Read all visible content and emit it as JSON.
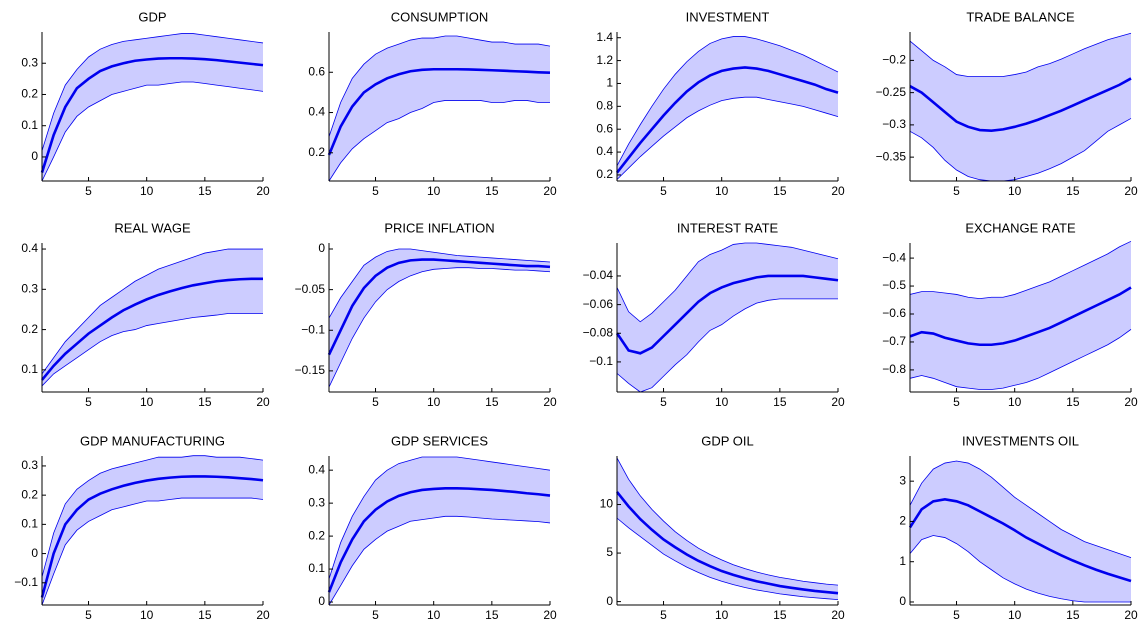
{
  "chart_data": [
    {
      "type": "line",
      "title": "GDP",
      "x": [
        1,
        2,
        3,
        4,
        5,
        6,
        7,
        8,
        9,
        10,
        11,
        12,
        13,
        14,
        15,
        16,
        17,
        18,
        19,
        20
      ],
      "xlim": [
        1,
        20
      ],
      "xticks": [
        5,
        10,
        15,
        20
      ],
      "ylim": [
        -0.077,
        0.4
      ],
      "yticks": [
        0,
        0.1,
        0.2,
        0.3
      ],
      "color": "#0000ee",
      "band_color": "#ccccff",
      "values": [
        -0.05,
        0.07,
        0.16,
        0.22,
        0.25,
        0.275,
        0.29,
        0.3,
        0.308,
        0.312,
        0.315,
        0.316,
        0.316,
        0.315,
        0.313,
        0.31,
        0.306,
        0.302,
        0.298,
        0.294
      ],
      "upper": [
        0.02,
        0.14,
        0.23,
        0.28,
        0.32,
        0.345,
        0.36,
        0.37,
        0.375,
        0.38,
        0.385,
        0.39,
        0.395,
        0.395,
        0.39,
        0.385,
        0.38,
        0.375,
        0.37,
        0.365
      ],
      "lower": [
        -0.077,
        0,
        0.08,
        0.13,
        0.16,
        0.18,
        0.2,
        0.21,
        0.22,
        0.23,
        0.23,
        0.235,
        0.24,
        0.24,
        0.235,
        0.23,
        0.225,
        0.22,
        0.215,
        0.21
      ]
    },
    {
      "type": "line",
      "title": "CONSUMPTION",
      "x": [
        1,
        2,
        3,
        4,
        5,
        6,
        7,
        8,
        9,
        10,
        11,
        12,
        13,
        14,
        15,
        16,
        17,
        18,
        19,
        20
      ],
      "xlim": [
        1,
        20
      ],
      "xticks": [
        5,
        10,
        15,
        20
      ],
      "ylim": [
        0.06,
        0.8
      ],
      "yticks": [
        0.2,
        0.4,
        0.6
      ],
      "color": "#0000ee",
      "band_color": "#ccccff",
      "values": [
        0.19,
        0.33,
        0.43,
        0.5,
        0.54,
        0.57,
        0.59,
        0.605,
        0.612,
        0.615,
        0.615,
        0.615,
        0.614,
        0.612,
        0.61,
        0.608,
        0.605,
        0.603,
        0.6,
        0.598
      ],
      "upper": [
        0.28,
        0.45,
        0.57,
        0.64,
        0.69,
        0.72,
        0.74,
        0.76,
        0.77,
        0.77,
        0.78,
        0.78,
        0.77,
        0.76,
        0.75,
        0.75,
        0.74,
        0.74,
        0.74,
        0.73
      ],
      "lower": [
        0.06,
        0.15,
        0.22,
        0.27,
        0.31,
        0.35,
        0.37,
        0.4,
        0.42,
        0.45,
        0.46,
        0.46,
        0.46,
        0.46,
        0.45,
        0.45,
        0.46,
        0.46,
        0.45,
        0.45
      ]
    },
    {
      "type": "line",
      "title": "INVESTMENT",
      "x": [
        1,
        2,
        3,
        4,
        5,
        6,
        7,
        8,
        9,
        10,
        11,
        12,
        13,
        14,
        15,
        16,
        17,
        18,
        19,
        20
      ],
      "xlim": [
        1,
        20
      ],
      "xticks": [
        5,
        10,
        15,
        20
      ],
      "ylim": [
        0.147,
        1.45
      ],
      "yticks": [
        0.2,
        0.4,
        0.6,
        0.8,
        1,
        1.2,
        1.4
      ],
      "color": "#0000ee",
      "band_color": "#ccccff",
      "values": [
        0.22,
        0.35,
        0.48,
        0.6,
        0.72,
        0.83,
        0.93,
        1.01,
        1.07,
        1.11,
        1.13,
        1.14,
        1.13,
        1.11,
        1.08,
        1.05,
        1.02,
        0.99,
        0.95,
        0.92
      ],
      "upper": [
        0.28,
        0.47,
        0.64,
        0.8,
        0.95,
        1.08,
        1.19,
        1.28,
        1.35,
        1.39,
        1.41,
        1.41,
        1.39,
        1.36,
        1.33,
        1.29,
        1.25,
        1.2,
        1.15,
        1.1
      ],
      "lower": [
        0.16,
        0.26,
        0.36,
        0.45,
        0.54,
        0.62,
        0.7,
        0.76,
        0.81,
        0.85,
        0.87,
        0.88,
        0.88,
        0.86,
        0.84,
        0.82,
        0.8,
        0.77,
        0.74,
        0.71
      ]
    },
    {
      "type": "line",
      "title": "TRADE BALANCE",
      "x": [
        1,
        2,
        3,
        4,
        5,
        6,
        7,
        8,
        9,
        10,
        11,
        12,
        13,
        14,
        15,
        16,
        17,
        18,
        19,
        20
      ],
      "xlim": [
        1,
        20
      ],
      "xticks": [
        5,
        10,
        15,
        20
      ],
      "ylim": [
        -0.387,
        -0.156
      ],
      "yticks": [
        {
          "value": -0.2,
          "label": "−0.2"
        },
        {
          "value": -0.25,
          "label": "−0.25"
        },
        {
          "value": -0.3,
          "label": "−0.3"
        },
        {
          "value": -0.35,
          "label": "−0.35"
        }
      ],
      "color": "#0000ee",
      "band_color": "#ccccff",
      "values": [
        -0.24,
        -0.25,
        -0.265,
        -0.28,
        -0.295,
        -0.303,
        -0.308,
        -0.309,
        -0.307,
        -0.303,
        -0.298,
        -0.292,
        -0.285,
        -0.278,
        -0.27,
        -0.262,
        -0.254,
        -0.246,
        -0.238,
        -0.228
      ],
      "upper": [
        -0.17,
        -0.185,
        -0.2,
        -0.21,
        -0.222,
        -0.225,
        -0.225,
        -0.225,
        -0.225,
        -0.222,
        -0.218,
        -0.21,
        -0.205,
        -0.198,
        -0.19,
        -0.182,
        -0.175,
        -0.168,
        -0.163,
        -0.158
      ],
      "lower": [
        -0.31,
        -0.32,
        -0.335,
        -0.355,
        -0.37,
        -0.38,
        -0.385,
        -0.387,
        -0.387,
        -0.385,
        -0.38,
        -0.375,
        -0.368,
        -0.36,
        -0.35,
        -0.34,
        -0.325,
        -0.31,
        -0.3,
        -0.29
      ]
    },
    {
      "type": "line",
      "title": "REAL WAGE",
      "x": [
        1,
        2,
        3,
        4,
        5,
        6,
        7,
        8,
        9,
        10,
        11,
        12,
        13,
        14,
        15,
        16,
        17,
        18,
        19,
        20
      ],
      "xlim": [
        1,
        20
      ],
      "xticks": [
        5,
        10,
        15,
        20
      ],
      "ylim": [
        0.045,
        0.415
      ],
      "yticks": [
        0.1,
        0.2,
        0.3,
        0.4
      ],
      "color": "#0000ee",
      "band_color": "#ccccff",
      "values": [
        0.075,
        0.11,
        0.14,
        0.165,
        0.19,
        0.21,
        0.23,
        0.248,
        0.262,
        0.275,
        0.286,
        0.295,
        0.303,
        0.31,
        0.315,
        0.32,
        0.323,
        0.325,
        0.326,
        0.326
      ],
      "upper": [
        0.09,
        0.13,
        0.17,
        0.2,
        0.23,
        0.26,
        0.28,
        0.3,
        0.32,
        0.335,
        0.35,
        0.36,
        0.37,
        0.38,
        0.39,
        0.395,
        0.4,
        0.4,
        0.4,
        0.4
      ],
      "lower": [
        0.06,
        0.09,
        0.11,
        0.13,
        0.15,
        0.17,
        0.185,
        0.195,
        0.2,
        0.21,
        0.215,
        0.22,
        0.225,
        0.23,
        0.233,
        0.236,
        0.24,
        0.24,
        0.24,
        0.24
      ]
    },
    {
      "type": "line",
      "title": "PRICE INFLATION",
      "x": [
        1,
        2,
        3,
        4,
        5,
        6,
        7,
        8,
        9,
        10,
        11,
        12,
        13,
        14,
        15,
        16,
        17,
        18,
        19,
        20
      ],
      "xlim": [
        1,
        20
      ],
      "xticks": [
        5,
        10,
        15,
        20
      ],
      "ylim": [
        -0.176,
        0.0074
      ],
      "yticks": [
        0,
        {
          "value": -0.05,
          "label": "−0.05"
        },
        {
          "value": -0.1,
          "label": "−0.1"
        },
        {
          "value": -0.15,
          "label": "−0.15"
        }
      ],
      "color": "#0000ee",
      "band_color": "#ccccff",
      "values": [
        -0.13,
        -0.1,
        -0.07,
        -0.048,
        -0.033,
        -0.023,
        -0.017,
        -0.014,
        -0.013,
        -0.013,
        -0.014,
        -0.015,
        -0.016,
        -0.017,
        -0.018,
        -0.019,
        -0.02,
        -0.021,
        -0.021,
        -0.022
      ],
      "upper": [
        -0.085,
        -0.06,
        -0.04,
        -0.02,
        -0.01,
        -0.003,
        0,
        0,
        -0.002,
        -0.004,
        -0.006,
        -0.008,
        -0.009,
        -0.01,
        -0.011,
        -0.012,
        -0.013,
        -0.014,
        -0.015,
        -0.016
      ],
      "lower": [
        -0.17,
        -0.14,
        -0.11,
        -0.085,
        -0.065,
        -0.05,
        -0.04,
        -0.033,
        -0.028,
        -0.025,
        -0.024,
        -0.023,
        -0.023,
        -0.024,
        -0.024,
        -0.025,
        -0.026,
        -0.026,
        -0.027,
        -0.028
      ]
    },
    {
      "type": "line",
      "title": "INTEREST RATE",
      "x": [
        1,
        2,
        3,
        4,
        5,
        6,
        7,
        8,
        9,
        10,
        11,
        12,
        13,
        14,
        15,
        16,
        17,
        18,
        19,
        20
      ],
      "xlim": [
        1,
        20
      ],
      "xticks": [
        5,
        10,
        15,
        20
      ],
      "ylim": [
        -0.121,
        -0.017
      ],
      "yticks": [
        {
          "value": -0.04,
          "label": "−0.04"
        },
        {
          "value": -0.06,
          "label": "−0.06"
        },
        {
          "value": -0.08,
          "label": "−0.08"
        },
        {
          "value": -0.1,
          "label": "−0.1"
        }
      ],
      "color": "#0000ee",
      "band_color": "#ccccff",
      "values": [
        -0.08,
        -0.092,
        -0.094,
        -0.09,
        -0.082,
        -0.074,
        -0.066,
        -0.058,
        -0.052,
        -0.048,
        -0.045,
        -0.043,
        -0.041,
        -0.04,
        -0.04,
        -0.04,
        -0.04,
        -0.041,
        -0.042,
        -0.043
      ],
      "upper": [
        -0.048,
        -0.065,
        -0.072,
        -0.066,
        -0.058,
        -0.05,
        -0.04,
        -0.03,
        -0.025,
        -0.022,
        -0.018,
        -0.017,
        -0.017,
        -0.018,
        -0.019,
        -0.02,
        -0.022,
        -0.024,
        -0.026,
        -0.028
      ],
      "lower": [
        -0.108,
        -0.115,
        -0.121,
        -0.118,
        -0.11,
        -0.102,
        -0.095,
        -0.086,
        -0.078,
        -0.074,
        -0.068,
        -0.063,
        -0.059,
        -0.057,
        -0.056,
        -0.056,
        -0.056,
        -0.056,
        -0.056,
        -0.056
      ]
    },
    {
      "type": "line",
      "title": "EXCHANGE RATE",
      "x": [
        1,
        2,
        3,
        4,
        5,
        6,
        7,
        8,
        9,
        10,
        11,
        12,
        13,
        14,
        15,
        16,
        17,
        18,
        19,
        20
      ],
      "xlim": [
        1,
        20
      ],
      "xticks": [
        5,
        10,
        15,
        20
      ],
      "ylim": [
        -0.879,
        -0.346
      ],
      "yticks": [
        {
          "value": -0.4,
          "label": "−0.4"
        },
        {
          "value": -0.5,
          "label": "−0.5"
        },
        {
          "value": -0.6,
          "label": "−0.6"
        },
        {
          "value": -0.7,
          "label": "−0.7"
        },
        {
          "value": -0.8,
          "label": "−0.8"
        }
      ],
      "color": "#0000ee",
      "band_color": "#ccccff",
      "values": [
        -0.68,
        -0.665,
        -0.67,
        -0.685,
        -0.695,
        -0.705,
        -0.71,
        -0.71,
        -0.705,
        -0.695,
        -0.68,
        -0.665,
        -0.65,
        -0.63,
        -0.61,
        -0.59,
        -0.57,
        -0.55,
        -0.53,
        -0.505
      ],
      "upper": [
        -0.53,
        -0.52,
        -0.52,
        -0.525,
        -0.53,
        -0.54,
        -0.545,
        -0.54,
        -0.54,
        -0.53,
        -0.515,
        -0.5,
        -0.485,
        -0.465,
        -0.445,
        -0.425,
        -0.405,
        -0.385,
        -0.36,
        -0.34
      ],
      "lower": [
        -0.83,
        -0.82,
        -0.83,
        -0.845,
        -0.86,
        -0.865,
        -0.87,
        -0.87,
        -0.865,
        -0.855,
        -0.845,
        -0.83,
        -0.81,
        -0.79,
        -0.77,
        -0.75,
        -0.73,
        -0.71,
        -0.685,
        -0.655
      ]
    },
    {
      "type": "line",
      "title": "GDP MANUFACTURING",
      "x": [
        1,
        2,
        3,
        4,
        5,
        6,
        7,
        8,
        9,
        10,
        11,
        12,
        13,
        14,
        15,
        16,
        17,
        18,
        19,
        20
      ],
      "xlim": [
        1,
        20
      ],
      "xticks": [
        5,
        10,
        15,
        20
      ],
      "ylim": [
        -0.176,
        0.334
      ],
      "yticks": [
        {
          "value": -0.1,
          "label": "−0.1"
        },
        0,
        0.1,
        0.2,
        0.3
      ],
      "color": "#0000ee",
      "band_color": "#ccccff",
      "values": [
        -0.15,
        0,
        0.1,
        0.15,
        0.185,
        0.205,
        0.22,
        0.232,
        0.242,
        0.25,
        0.256,
        0.26,
        0.263,
        0.264,
        0.264,
        0.263,
        0.261,
        0.258,
        0.255,
        0.251
      ],
      "upper": [
        -0.08,
        0.07,
        0.17,
        0.22,
        0.25,
        0.275,
        0.29,
        0.3,
        0.31,
        0.32,
        0.33,
        0.33,
        0.33,
        0.335,
        0.335,
        0.33,
        0.33,
        0.33,
        0.325,
        0.32
      ],
      "lower": [
        -0.176,
        -0.07,
        0.03,
        0.08,
        0.11,
        0.13,
        0.15,
        0.16,
        0.17,
        0.18,
        0.18,
        0.185,
        0.19,
        0.19,
        0.19,
        0.19,
        0.19,
        0.19,
        0.19,
        0.185
      ]
    },
    {
      "type": "line",
      "title": "GDP SERVICES",
      "x": [
        1,
        2,
        3,
        4,
        5,
        6,
        7,
        8,
        9,
        10,
        11,
        12,
        13,
        14,
        15,
        16,
        17,
        18,
        19,
        20
      ],
      "xlim": [
        1,
        20
      ],
      "xticks": [
        5,
        10,
        15,
        20
      ],
      "ylim": [
        -0.009,
        0.443
      ],
      "yticks": [
        0,
        0.1,
        0.2,
        0.3,
        0.4
      ],
      "color": "#0000ee",
      "band_color": "#ccccff",
      "values": [
        0.03,
        0.12,
        0.19,
        0.245,
        0.28,
        0.305,
        0.322,
        0.333,
        0.34,
        0.343,
        0.345,
        0.345,
        0.344,
        0.342,
        0.34,
        0.337,
        0.334,
        0.33,
        0.327,
        0.323
      ],
      "upper": [
        0.07,
        0.18,
        0.26,
        0.32,
        0.37,
        0.4,
        0.42,
        0.43,
        0.44,
        0.44,
        0.44,
        0.44,
        0.435,
        0.43,
        0.425,
        0.42,
        0.415,
        0.41,
        0.405,
        0.4
      ],
      "lower": [
        -0.009,
        0.05,
        0.11,
        0.16,
        0.19,
        0.215,
        0.23,
        0.245,
        0.25,
        0.255,
        0.26,
        0.26,
        0.258,
        0.255,
        0.252,
        0.25,
        0.248,
        0.246,
        0.244,
        0.24
      ]
    },
    {
      "type": "line",
      "title": "GDP OIL",
      "x": [
        1,
        2,
        3,
        4,
        5,
        6,
        7,
        8,
        9,
        10,
        11,
        12,
        13,
        14,
        15,
        16,
        17,
        18,
        19,
        20
      ],
      "xlim": [
        1,
        20
      ],
      "xticks": [
        5,
        10,
        15,
        20
      ],
      "ylim": [
        -0.35,
        15
      ],
      "yticks": [
        0,
        5,
        10
      ],
      "color": "#0000ee",
      "band_color": "#ccccff",
      "values": [
        11.3,
        9.8,
        8.5,
        7.4,
        6.4,
        5.6,
        4.85,
        4.2,
        3.65,
        3.15,
        2.75,
        2.4,
        2.1,
        1.85,
        1.6,
        1.42,
        1.25,
        1.1,
        0.98,
        0.87
      ],
      "upper": [
        14.8,
        12.6,
        10.9,
        9.5,
        8.3,
        7.2,
        6.3,
        5.5,
        4.85,
        4.3,
        3.8,
        3.4,
        3.05,
        2.75,
        2.5,
        2.3,
        2.1,
        1.95,
        1.8,
        1.7
      ],
      "lower": [
        8.6,
        7.6,
        6.7,
        5.8,
        4.9,
        4.2,
        3.55,
        3,
        2.5,
        2.1,
        1.75,
        1.45,
        1.2,
        1,
        0.8,
        0.65,
        0.5,
        0.4,
        0.3,
        0.2
      ]
    },
    {
      "type": "line",
      "title": "INVESTMENTS OIL",
      "x": [
        1,
        2,
        3,
        4,
        5,
        6,
        7,
        8,
        9,
        10,
        11,
        12,
        13,
        14,
        15,
        16,
        17,
        18,
        19,
        20
      ],
      "xlim": [
        1,
        20
      ],
      "xticks": [
        5,
        10,
        15,
        20
      ],
      "ylim": [
        -0.075,
        3.625
      ],
      "yticks": [
        0,
        1,
        2,
        3
      ],
      "color": "#0000ee",
      "band_color": "#ccccff",
      "values": [
        1.85,
        2.3,
        2.5,
        2.55,
        2.5,
        2.4,
        2.25,
        2.1,
        1.95,
        1.78,
        1.6,
        1.45,
        1.3,
        1.16,
        1.03,
        0.91,
        0.8,
        0.7,
        0.61,
        0.52
      ],
      "upper": [
        2.4,
        2.95,
        3.3,
        3.45,
        3.5,
        3.45,
        3.3,
        3.1,
        2.85,
        2.6,
        2.4,
        2.2,
        2,
        1.8,
        1.65,
        1.5,
        1.4,
        1.3,
        1.2,
        1.1
      ],
      "lower": [
        1.2,
        1.55,
        1.65,
        1.6,
        1.45,
        1.25,
        1,
        0.8,
        0.6,
        0.45,
        0.32,
        0.22,
        0.14,
        0.08,
        0.03,
        0,
        0,
        0,
        0,
        0
      ]
    }
  ]
}
